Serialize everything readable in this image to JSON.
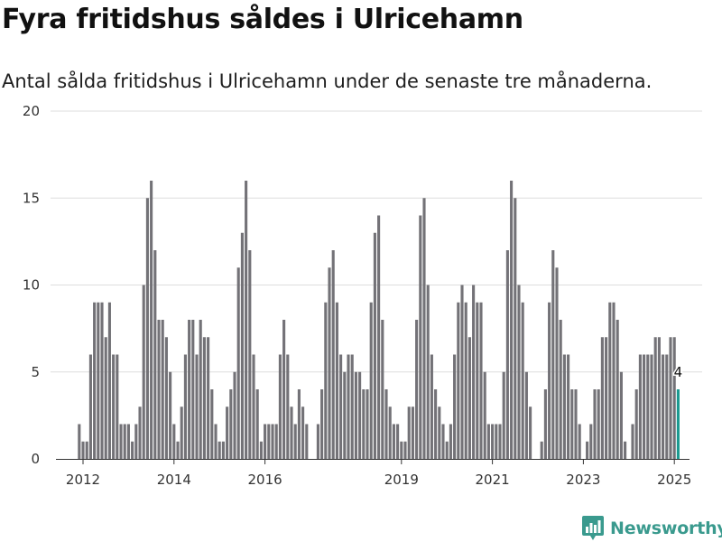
{
  "chart_data": {
    "type": "bar",
    "title": "Fyra fritidshus såldes i Ulricehamn",
    "subtitle": "Antal sålda fritidshus i Ulricehamn under de senaste tre månaderna.",
    "xlabel": "",
    "ylabel": "",
    "ylim": [
      0,
      20
    ],
    "yticks": [
      0,
      5,
      10,
      15,
      20
    ],
    "xticks": [
      2012,
      2014,
      2016,
      2019,
      2021,
      2023,
      2025
    ],
    "grid": true,
    "bar_color": "#737277",
    "highlight_color": "#1a9a8f",
    "x_start": 2011.917,
    "x_step": 0.08333,
    "values": [
      2,
      1,
      1,
      6,
      9,
      9,
      9,
      7,
      9,
      6,
      6,
      2,
      2,
      2,
      1,
      2,
      3,
      10,
      15,
      16,
      12,
      8,
      8,
      7,
      5,
      2,
      1,
      3,
      6,
      8,
      8,
      6,
      8,
      7,
      7,
      4,
      2,
      1,
      1,
      3,
      4,
      5,
      11,
      13,
      16,
      12,
      6,
      4,
      1,
      2,
      2,
      2,
      2,
      6,
      8,
      6,
      3,
      2,
      4,
      3,
      2,
      null,
      null,
      2,
      4,
      9,
      11,
      12,
      9,
      6,
      5,
      6,
      6,
      5,
      5,
      4,
      4,
      9,
      13,
      14,
      8,
      4,
      3,
      2,
      2,
      1,
      1,
      3,
      3,
      8,
      14,
      15,
      10,
      6,
      4,
      3,
      2,
      1,
      2,
      6,
      9,
      10,
      9,
      7,
      10,
      9,
      9,
      5,
      2,
      2,
      2,
      2,
      5,
      12,
      16,
      15,
      10,
      9,
      5,
      3,
      null,
      null,
      1,
      4,
      9,
      12,
      11,
      8,
      6,
      6,
      4,
      4,
      2,
      null,
      1,
      2,
      4,
      4,
      7,
      7,
      9,
      9,
      8,
      5,
      1,
      null,
      2,
      4,
      6,
      6,
      6,
      6,
      7,
      7,
      6,
      6,
      7,
      7,
      4
    ],
    "last_value_label": "4"
  },
  "brand": {
    "name": "Newsworthy",
    "logo_icon": "bar-chart-logo-icon"
  }
}
